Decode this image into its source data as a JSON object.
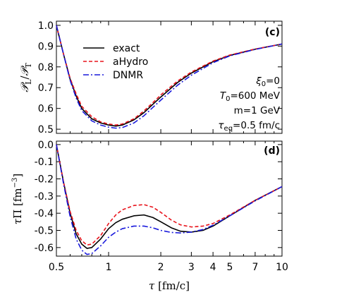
{
  "chart_data": [
    {
      "type": "line",
      "panel_label": "(c)",
      "ylabel": "𝒫_L/𝒫_T",
      "xscale": "log",
      "xlim": [
        0.5,
        10
      ],
      "ylim": [
        0.48,
        1.02
      ],
      "xticks": [
        0.5,
        1,
        2,
        3,
        4,
        5,
        7,
        10
      ],
      "yticks": [
        0.5,
        0.6,
        0.7,
        0.8,
        0.9,
        1.0
      ],
      "ytick_labels": [
        "0.5",
        "0.6",
        "0.7",
        "0.8",
        "0.9",
        "1.0"
      ],
      "legend": {
        "placement": "top-left",
        "entries": [
          "exact",
          "aHydro",
          "DNMR"
        ]
      },
      "annotations": [
        "ξ₀=0",
        "T₀=600 MeV",
        "m=1 GeV",
        "τeq=0.5 fm/c"
      ],
      "series": [
        {
          "name": "exact",
          "color": "#000000",
          "dash": "solid",
          "x": [
            0.5,
            0.55,
            0.6,
            0.65,
            0.7,
            0.8,
            0.9,
            1.0,
            1.1,
            1.2,
            1.4,
            1.6,
            1.8,
            2.0,
            2.5,
            3.0,
            4.0,
            5.0,
            7.0,
            10.0
          ],
          "y": [
            1.0,
            0.86,
            0.74,
            0.66,
            0.6,
            0.55,
            0.53,
            0.52,
            0.515,
            0.52,
            0.545,
            0.58,
            0.62,
            0.655,
            0.725,
            0.77,
            0.825,
            0.855,
            0.885,
            0.91
          ]
        },
        {
          "name": "aHydro",
          "color": "#e8141c",
          "dash": "dashed",
          "x": [
            0.5,
            0.55,
            0.6,
            0.65,
            0.7,
            0.8,
            0.9,
            1.0,
            1.1,
            1.2,
            1.4,
            1.6,
            1.8,
            2.0,
            2.5,
            3.0,
            4.0,
            5.0,
            7.0,
            10.0
          ],
          "y": [
            1.0,
            0.86,
            0.745,
            0.67,
            0.61,
            0.56,
            0.535,
            0.525,
            0.52,
            0.525,
            0.55,
            0.588,
            0.628,
            0.665,
            0.732,
            0.775,
            0.828,
            0.857,
            0.886,
            0.91
          ]
        },
        {
          "name": "DNMR",
          "color": "#1a1adc",
          "dash": "dashdot",
          "x": [
            0.5,
            0.55,
            0.6,
            0.65,
            0.7,
            0.8,
            0.9,
            1.0,
            1.1,
            1.2,
            1.4,
            1.6,
            1.8,
            2.0,
            2.5,
            3.0,
            4.0,
            5.0,
            7.0,
            10.0
          ],
          "y": [
            1.0,
            0.86,
            0.735,
            0.65,
            0.59,
            0.54,
            0.52,
            0.51,
            0.505,
            0.508,
            0.53,
            0.565,
            0.605,
            0.64,
            0.712,
            0.76,
            0.82,
            0.853,
            0.884,
            0.91
          ]
        }
      ]
    },
    {
      "type": "line",
      "panel_label": "(d)",
      "ylabel": "τΠ [fm⁻³]",
      "xlabel": "τ [fm/c]",
      "xscale": "log",
      "xlim": [
        0.5,
        10
      ],
      "ylim": [
        -0.65,
        0.02
      ],
      "xticks": [
        0.5,
        1,
        2,
        3,
        4,
        5,
        7,
        10
      ],
      "xtick_labels": [
        "0.5",
        "1",
        "2",
        "3",
        "4",
        "5",
        "7",
        "10"
      ],
      "yticks": [
        0.0,
        -0.1,
        -0.2,
        -0.3,
        -0.4,
        -0.5,
        -0.6
      ],
      "ytick_labels": [
        "0.0",
        "-0.1",
        "-0.2",
        "-0.3",
        "-0.4",
        "-0.5",
        "-0.6"
      ],
      "series": [
        {
          "name": "exact",
          "color": "#000000",
          "dash": "solid",
          "x": [
            0.5,
            0.55,
            0.6,
            0.65,
            0.7,
            0.75,
            0.8,
            0.9,
            1.0,
            1.1,
            1.2,
            1.4,
            1.6,
            1.8,
            2.0,
            2.3,
            2.6,
            3.0,
            3.5,
            4.0,
            5.0,
            7.0,
            10.0
          ],
          "y": [
            0.0,
            -0.22,
            -0.4,
            -0.52,
            -0.58,
            -0.605,
            -0.6,
            -0.55,
            -0.49,
            -0.455,
            -0.435,
            -0.415,
            -0.41,
            -0.425,
            -0.45,
            -0.485,
            -0.505,
            -0.51,
            -0.5,
            -0.475,
            -0.415,
            -0.325,
            -0.245
          ]
        },
        {
          "name": "aHydro",
          "color": "#e8141c",
          "dash": "dashed",
          "x": [
            0.5,
            0.55,
            0.6,
            0.65,
            0.7,
            0.75,
            0.8,
            0.9,
            1.0,
            1.1,
            1.2,
            1.4,
            1.6,
            1.8,
            2.0,
            2.3,
            2.6,
            3.0,
            3.5,
            4.0,
            5.0,
            7.0,
            10.0
          ],
          "y": [
            0.0,
            -0.22,
            -0.39,
            -0.5,
            -0.56,
            -0.585,
            -0.58,
            -0.53,
            -0.46,
            -0.41,
            -0.38,
            -0.355,
            -0.35,
            -0.365,
            -0.395,
            -0.44,
            -0.468,
            -0.48,
            -0.475,
            -0.46,
            -0.41,
            -0.325,
            -0.245
          ]
        },
        {
          "name": "DNMR",
          "color": "#1a1adc",
          "dash": "dashdot",
          "x": [
            0.5,
            0.55,
            0.6,
            0.65,
            0.7,
            0.75,
            0.8,
            0.9,
            1.0,
            1.1,
            1.2,
            1.4,
            1.6,
            1.8,
            2.0,
            2.3,
            2.6,
            3.0,
            3.5,
            4.0,
            5.0,
            7.0,
            10.0
          ],
          "y": [
            0.0,
            -0.23,
            -0.42,
            -0.55,
            -0.615,
            -0.64,
            -0.635,
            -0.59,
            -0.54,
            -0.51,
            -0.49,
            -0.475,
            -0.475,
            -0.485,
            -0.5,
            -0.512,
            -0.515,
            -0.51,
            -0.495,
            -0.47,
            -0.415,
            -0.328,
            -0.245
          ]
        }
      ]
    }
  ]
}
